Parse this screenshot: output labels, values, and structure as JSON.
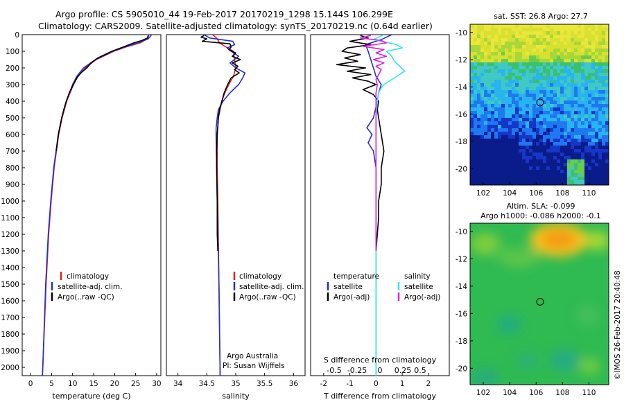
{
  "header": {
    "line1": "Argo profile: CS 5905010_44 19-Feb-2017 20170219_1298 15.144S 106.299E",
    "line2": "Climatology: CARS2009. Satellite-adjusted climatology: synTS_20170219.nc (0.64d earlier)"
  },
  "credit": "©IMOS 26-Feb-2017 20:40:48",
  "colors": {
    "clim": "#e02020",
    "sat": "#1f2fd6",
    "argo": "#000000",
    "sat_s": "#2ee6f0",
    "argo_s": "#e21ee0"
  },
  "chart_data": [
    {
      "type": "line",
      "id": "temperature",
      "xlabel": "temperature (deg C)",
      "ylabel": "",
      "xlim": [
        -2,
        31
      ],
      "ylim": [
        2050,
        0
      ],
      "xticks": [
        0,
        5,
        10,
        15,
        20,
        25,
        30
      ],
      "yticks": [
        0,
        100,
        200,
        300,
        400,
        500,
        600,
        700,
        800,
        900,
        1000,
        1100,
        1200,
        1300,
        1400,
        1500,
        1600,
        1700,
        1800,
        1900,
        2000
      ],
      "legend": [
        "climatology",
        "satellite-adj. clim.",
        "Argo(..raw -QC)"
      ],
      "legend_placement": "lower-center",
      "series": [
        {
          "name": "climatology",
          "color": "#e02020",
          "depth": [
            0,
            25,
            50,
            75,
            100,
            150,
            200,
            250,
            300,
            400,
            500,
            600,
            800,
            1000,
            1200,
            1500,
            2000,
            2050
          ],
          "values": [
            28.2,
            27.8,
            26.0,
            22.6,
            19.8,
            15.6,
            13.0,
            11.3,
            10.2,
            8.6,
            7.5,
            6.7,
            5.6,
            4.9,
            4.3,
            3.7,
            2.9,
            2.8
          ]
        },
        {
          "name": "satellite-adj. clim.",
          "color": "#1f2fd6",
          "depth": [
            0,
            25,
            50,
            75,
            100,
            150,
            200,
            250,
            300,
            400,
            500,
            600,
            800,
            1000,
            1200,
            1500,
            2000,
            2050
          ],
          "values": [
            28.8,
            28.0,
            25.4,
            22.3,
            19.5,
            15.4,
            12.6,
            11.0,
            10.0,
            8.5,
            7.4,
            6.6,
            5.5,
            4.8,
            4.2,
            3.6,
            2.9,
            2.8
          ]
        },
        {
          "name": "Argo(..raw -QC)",
          "color": "#000000",
          "depth": [
            5,
            20,
            35,
            50,
            70,
            100,
            140,
            170,
            200,
            230,
            260,
            300,
            350,
            400,
            450,
            500,
            600,
            700
          ],
          "values": [
            28.0,
            27.8,
            26.5,
            24.5,
            22.5,
            19.3,
            16.0,
            14.4,
            13.4,
            12.0,
            11.0,
            10.2,
            9.2,
            8.5,
            7.9,
            7.4,
            6.6,
            6.1
          ]
        }
      ]
    },
    {
      "type": "line",
      "id": "salinity",
      "xlabel": "salinity",
      "xlim": [
        33.8,
        36.2
      ],
      "ylim": [
        2050,
        0
      ],
      "xticks": [
        34,
        34.5,
        35,
        35.5,
        36
      ],
      "legend": [
        "climatology",
        "satellite-adj. clim.",
        "Argo(..raw -QC)"
      ],
      "legend_placement": "lower-right",
      "annotation": [
        "Argo Australia",
        "PI: Susan Wijffels"
      ],
      "series": [
        {
          "name": "climatology",
          "color": "#e02020",
          "depth": [
            0,
            25,
            50,
            80,
            100,
            150,
            200,
            250,
            300,
            350,
            400,
            500,
            600,
            800,
            1000,
            1500,
            2050
          ],
          "values": [
            34.6,
            34.68,
            34.72,
            34.86,
            34.96,
            34.98,
            35.0,
            34.96,
            34.88,
            34.81,
            34.76,
            34.7,
            34.68,
            34.68,
            34.69,
            34.71,
            34.73
          ]
        },
        {
          "name": "satellite-adj. clim.",
          "color": "#1f2fd6",
          "depth": [
            0,
            20,
            40,
            60,
            80,
            100,
            130,
            170,
            200,
            230,
            260,
            300,
            350,
            400,
            450,
            500,
            560,
            620,
            800,
            1000,
            1500,
            2050
          ],
          "values": [
            34.45,
            34.55,
            34.95,
            34.98,
            34.85,
            34.92,
            35.05,
            34.9,
            35.0,
            35.16,
            35.12,
            35.05,
            34.9,
            34.78,
            34.7,
            34.68,
            34.66,
            34.66,
            34.67,
            34.68,
            34.71,
            34.73
          ]
        },
        {
          "name": "Argo(..raw -QC)",
          "color": "#000000",
          "depth": [
            5,
            15,
            25,
            40,
            55,
            75,
            90,
            110,
            130,
            150,
            170,
            190,
            210,
            230,
            260,
            300,
            350,
            400,
            450,
            500,
            600,
            700,
            800,
            1000,
            1200,
            1300
          ],
          "values": [
            34.45,
            34.4,
            34.5,
            34.42,
            34.9,
            34.92,
            34.88,
            35.0,
            34.94,
            35.08,
            34.94,
            35.04,
            34.98,
            35.06,
            34.92,
            34.86,
            34.8,
            34.76,
            34.72,
            34.7,
            34.68,
            34.67,
            34.67,
            34.68,
            34.68,
            34.69
          ]
        }
      ]
    },
    {
      "type": "line",
      "id": "difference",
      "xlabel_bottom": "T difference from climatology",
      "xlabel_top": "S difference from climatology",
      "xlim": [
        -2.5,
        2.8
      ],
      "ylim": [
        2050,
        0
      ],
      "xticks_bottom": [
        -2,
        -1,
        0,
        1,
        2
      ],
      "xticks_top_labels": [
        "-0.5",
        "-0.25",
        "0",
        "0.25",
        "0.5"
      ],
      "legend_left_title": "temperature",
      "legend_right_title": "salinity",
      "legend": [
        "satellite",
        "Argo(-adj)",
        "satellite",
        "Argo(-adj)"
      ],
      "series": [
        {
          "name": "satellite",
          "group": "temperature",
          "color": "#1f2fd6",
          "depth": [
            0,
            30,
            60,
            100,
            150,
            200,
            250,
            300,
            350,
            400,
            500,
            560,
            600,
            650,
            700,
            800,
            1000,
            1500,
            2050
          ],
          "values": [
            0.6,
            0.2,
            -0.4,
            -0.3,
            -0.2,
            -0.1,
            0.0,
            0.2,
            0.1,
            0.05,
            -0.1,
            -0.35,
            -0.15,
            -0.3,
            -0.1,
            0.0,
            0.0,
            0.0,
            0.0
          ]
        },
        {
          "name": "Argo(-adj)",
          "group": "temperature",
          "color": "#000000",
          "depth": [
            5,
            20,
            40,
            60,
            80,
            100,
            120,
            140,
            160,
            180,
            200,
            220,
            240,
            260,
            280,
            300,
            330,
            360,
            400,
            450,
            500,
            600,
            700,
            800,
            900,
            1000,
            1100,
            1200,
            1300
          ],
          "values": [
            -0.6,
            -0.3,
            -1.0,
            -0.2,
            -1.1,
            -1.3,
            -0.6,
            -1.2,
            -0.7,
            -1.5,
            -0.4,
            -1.1,
            -0.2,
            -0.9,
            -0.3,
            0.0,
            -0.5,
            -0.1,
            0.1,
            0.05,
            0.1,
            0.2,
            0.3,
            0.2,
            0.2,
            0.1,
            0.1,
            0.05,
            0.0
          ]
        },
        {
          "name": "satellite",
          "group": "salinity",
          "color": "#2ee6f0",
          "depth": [
            0,
            30,
            60,
            80,
            100,
            130,
            160,
            190,
            220,
            250,
            280,
            300,
            320,
            350,
            400,
            500,
            800,
            1200,
            2050
          ],
          "values": [
            0.3,
            -0.1,
            0.8,
            1.0,
            0.4,
            0.6,
            0.7,
            0.9,
            1.1,
            0.8,
            0.5,
            0.3,
            0.2,
            0.1,
            0.05,
            0.0,
            0.0,
            0.0,
            0.0
          ]
        },
        {
          "name": "Argo(-adj)",
          "group": "salinity",
          "color": "#e21ee0",
          "depth": [
            5,
            20,
            35,
            50,
            70,
            90,
            110,
            130,
            150,
            170,
            190,
            210,
            240,
            270,
            300,
            350,
            400,
            500,
            700,
            1000,
            1300
          ],
          "values": [
            -0.2,
            -0.6,
            0.2,
            0.4,
            -0.5,
            0.3,
            0.0,
            0.4,
            -0.1,
            0.3,
            0.0,
            0.2,
            0.1,
            0.0,
            0.05,
            0.0,
            0.0,
            0.0,
            0.0,
            0.0,
            0.0
          ]
        }
      ]
    },
    {
      "type": "heatmap",
      "id": "sst_map",
      "title": "sat. SST: 26.8  Argo: 27.7",
      "xlim": [
        101,
        111.5
      ],
      "ylim": [
        -21.2,
        -9.4
      ],
      "xticks": [
        102,
        104,
        106,
        108,
        110
      ],
      "yticks": [
        -10,
        -12,
        -14,
        -16,
        -18,
        -20
      ],
      "marker_lon": 106.3,
      "marker_lat": -15.14
    },
    {
      "type": "heatmap",
      "id": "sla_map",
      "title": [
        "Altim. SLA: -0.099",
        "Argo h1000: -0.086  h2000: -0.1"
      ],
      "xlim": [
        101,
        111.5
      ],
      "ylim": [
        -21.2,
        -9.4
      ],
      "xticks": [
        102,
        104,
        106,
        108,
        110
      ],
      "yticks": [
        -10,
        -12,
        -14,
        -16,
        -18,
        -20
      ],
      "marker_lon": 106.3,
      "marker_lat": -15.14
    }
  ]
}
